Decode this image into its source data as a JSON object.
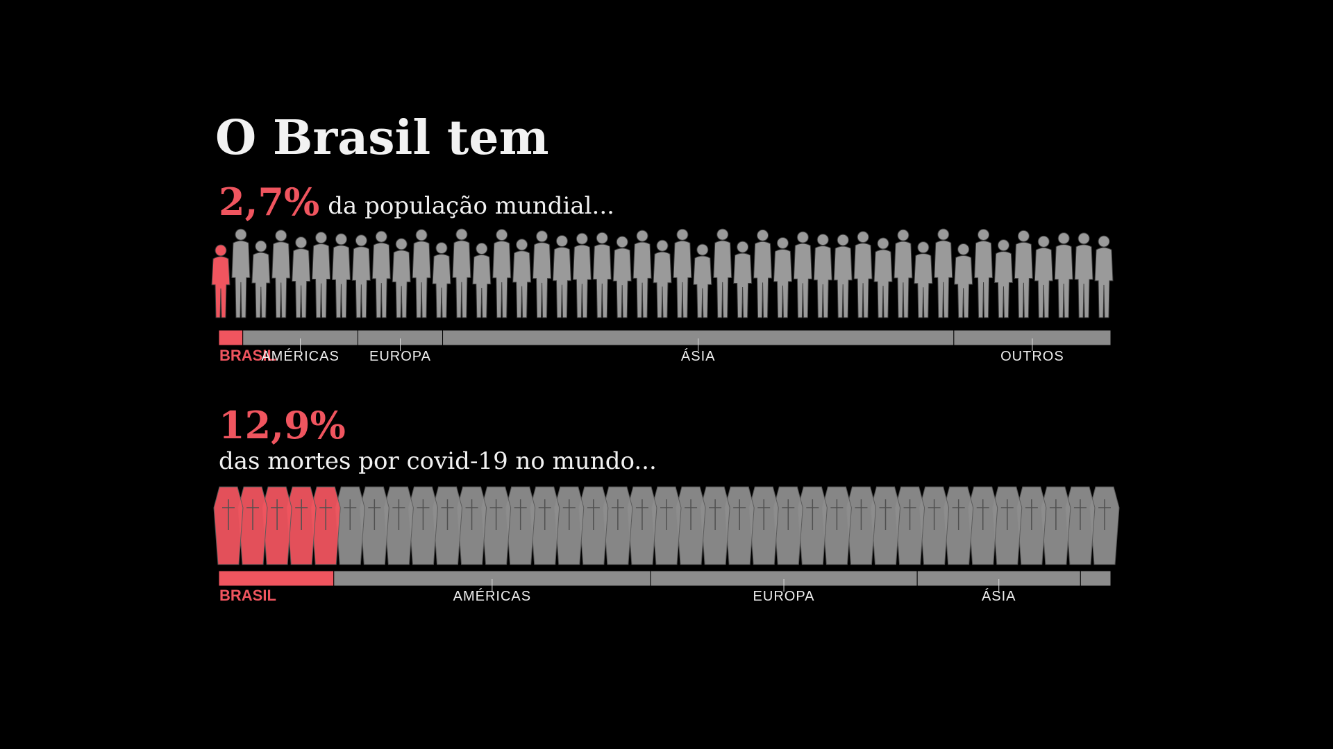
{
  "title": "O Brasil tem",
  "chart_data": [
    {
      "type": "bar",
      "subtitle": "da população mundial...",
      "categories": [
        "BRASIL",
        "AMÉRICAS",
        "EUROPA",
        "ÁSIA",
        "OUTROS"
      ],
      "values": [
        2.7,
        12.9,
        9.5,
        57.3,
        17.6
      ],
      "value_labels": [
        "2,7%",
        null,
        null,
        null,
        null
      ],
      "colors": [
        "#f0555f",
        "#8c8c8c",
        "#8c8c8c",
        "#8c8c8c",
        "#8c8c8c"
      ],
      "xlim": [
        0,
        100
      ]
    },
    {
      "type": "bar",
      "subtitle": "das mortes por covid-19 no mundo...",
      "categories": [
        "BRASIL",
        "AMÉRICAS",
        "EUROPA",
        "ÁSIA",
        null
      ],
      "values": [
        12.9,
        35.5,
        29.9,
        18.3,
        3.4
      ],
      "value_labels": [
        "12,9%",
        null,
        null,
        null,
        null
      ],
      "colors": [
        "#f0555f",
        "#8c8c8c",
        "#8c8c8c",
        "#8c8c8c",
        "#8c8c8c"
      ],
      "xlim": [
        0,
        100
      ]
    }
  ]
}
